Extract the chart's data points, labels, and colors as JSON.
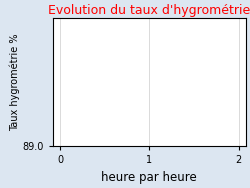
{
  "title": "Evolution du taux d'hygrométrie",
  "title_color": "#ff0000",
  "title_fontsize": 9,
  "xlabel": "heure par heure",
  "ylabel": "Taux hygrométrie %",
  "xlabel_fontsize": 8.5,
  "ylabel_fontsize": 7,
  "background_color": "#dce6f1",
  "plot_background_color": "#ffffff",
  "xlim": [
    -0.08,
    2.08
  ],
  "ylim_bottom": 89.0,
  "ylim_top": 129.0,
  "xticks": [
    0,
    1,
    2
  ],
  "yticks": [
    89.0
  ],
  "ytick_labels": [
    "89.0"
  ],
  "grid": true,
  "grid_color": "#cccccc",
  "grid_linewidth": 0.5,
  "tick_fontsize": 7,
  "spine_linewidth": 0.8
}
